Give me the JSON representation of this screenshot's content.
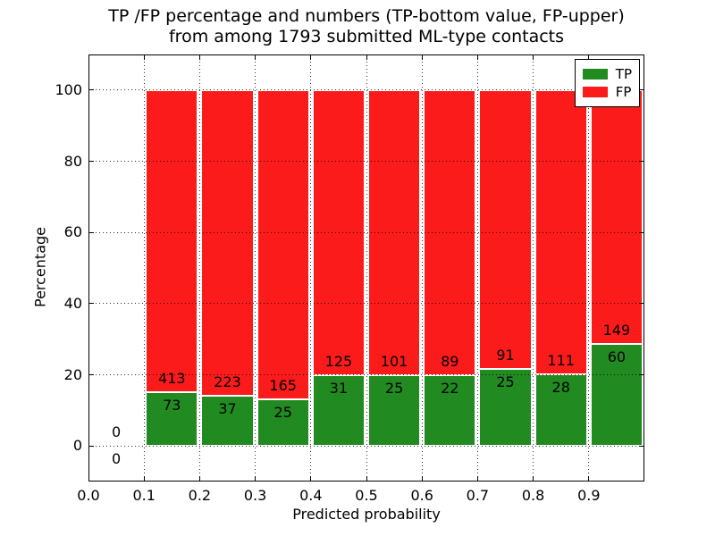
{
  "title": {
    "line1": "TP /FP percentage and numbers (TP-bottom value, FP-upper)",
    "line2": "from among 1793 submitted ML-type contacts"
  },
  "colors": {
    "tp_green": "#218a21",
    "fp_red": "#fb1b1b",
    "background": "#ffffff",
    "grid": "#000000"
  },
  "chart_data": {
    "type": "bar",
    "stacked": true,
    "total_contacts": 1793,
    "xlabel": "Predicted probability",
    "ylabel": "Percentage",
    "xlim": [
      0.0,
      1.0
    ],
    "ylim": [
      -10,
      110
    ],
    "grid": true,
    "grid_style": "dotted",
    "legend": {
      "position": "upper right",
      "entries": [
        {
          "label": "TP",
          "color": "#218a21"
        },
        {
          "label": "FP",
          "color": "#fb1b1b"
        }
      ]
    },
    "xticks": {
      "values": [
        0.0,
        0.1,
        0.2,
        0.3,
        0.4,
        0.5,
        0.6,
        0.7,
        0.8,
        0.9
      ],
      "labels": [
        "0.0",
        "0.1",
        "0.2",
        "0.3",
        "0.4",
        "0.5",
        "0.6",
        "0.7",
        "0.8",
        "0.9"
      ]
    },
    "yticks": {
      "values": [
        0,
        20,
        40,
        60,
        80,
        100
      ],
      "labels": [
        "0",
        "20",
        "40",
        "60",
        "80",
        "100"
      ]
    },
    "bins": [
      {
        "range": [
          0.0,
          0.1
        ],
        "tp_count": 0,
        "fp_count": 0,
        "tp_pct": 0.0,
        "fp_pct": 0.0,
        "bar": false
      },
      {
        "range": [
          0.1,
          0.2
        ],
        "tp_count": 73,
        "fp_count": 413,
        "tp_pct": 15.0,
        "fp_pct": 85.0,
        "bar": true
      },
      {
        "range": [
          0.2,
          0.3
        ],
        "tp_count": 37,
        "fp_count": 223,
        "tp_pct": 14.2,
        "fp_pct": 85.8,
        "bar": true
      },
      {
        "range": [
          0.3,
          0.4
        ],
        "tp_count": 25,
        "fp_count": 165,
        "tp_pct": 13.2,
        "fp_pct": 86.8,
        "bar": true
      },
      {
        "range": [
          0.4,
          0.5
        ],
        "tp_count": 31,
        "fp_count": 125,
        "tp_pct": 19.9,
        "fp_pct": 80.1,
        "bar": true
      },
      {
        "range": [
          0.5,
          0.6
        ],
        "tp_count": 25,
        "fp_count": 101,
        "tp_pct": 19.8,
        "fp_pct": 80.2,
        "bar": true
      },
      {
        "range": [
          0.6,
          0.7
        ],
        "tp_count": 22,
        "fp_count": 89,
        "tp_pct": 19.8,
        "fp_pct": 80.2,
        "bar": true
      },
      {
        "range": [
          0.7,
          0.8
        ],
        "tp_count": 25,
        "fp_count": 91,
        "tp_pct": 21.6,
        "fp_pct": 78.4,
        "bar": true
      },
      {
        "range": [
          0.8,
          0.9
        ],
        "tp_count": 28,
        "fp_count": 111,
        "tp_pct": 20.1,
        "fp_pct": 79.9,
        "bar": true
      },
      {
        "range": [
          0.9,
          1.0
        ],
        "tp_count": 60,
        "fp_count": 149,
        "tp_pct": 28.7,
        "fp_pct": 71.3,
        "bar": true
      }
    ]
  }
}
